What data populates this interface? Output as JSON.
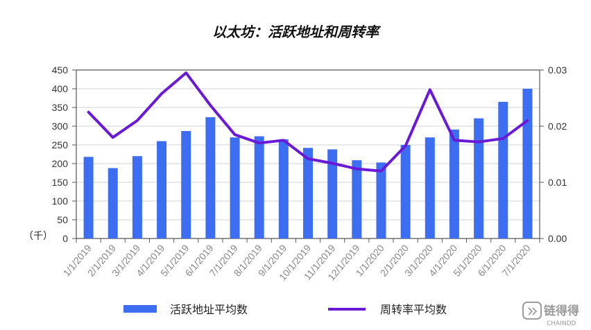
{
  "chart_data": {
    "type": "bar",
    "title": "以太坊：活跃地址和周转率",
    "categories": [
      "1/1/2019",
      "2/1/2019",
      "3/1/2019",
      "4/1/2019",
      "5/1/2019",
      "6/1/2019",
      "7/1/2019",
      "8/1/2019",
      "9/1/2019",
      "10/1/2019",
      "11/1/2019",
      "12/1/2019",
      "1/1/2020",
      "2/1/2020",
      "3/1/2020",
      "4/1/2020",
      "5/1/2020",
      "6/1/2020",
      "7/1/2020"
    ],
    "y_left": {
      "unit_label": "（千）",
      "ylim": [
        0,
        450
      ],
      "ticks": [
        "0",
        "50",
        "100",
        "150",
        "200",
        "250",
        "300",
        "350",
        "400",
        "450"
      ]
    },
    "y_right": {
      "ylim": [
        0,
        0.03
      ],
      "ticks": [
        "0.00",
        "0.01",
        "0.02",
        "0.03"
      ]
    },
    "series": [
      {
        "name": "活跃地址平均数",
        "type": "bar",
        "axis": "left",
        "color": "#3d6ef2",
        "values": [
          218,
          188,
          220,
          260,
          287,
          324,
          270,
          273,
          265,
          242,
          238,
          209,
          203,
          250,
          270,
          291,
          321,
          365,
          400
        ]
      },
      {
        "name": "周转率平均数",
        "type": "line",
        "axis": "right",
        "color": "#6a1ad6",
        "values": [
          0.0225,
          0.018,
          0.021,
          0.0258,
          0.0295,
          0.0237,
          0.0185,
          0.017,
          0.0175,
          0.0142,
          0.0134,
          0.0124,
          0.012,
          0.0165,
          0.0265,
          0.0175,
          0.0172,
          0.0178,
          0.021
        ]
      }
    ],
    "legend_position": "bottom",
    "grid": true
  },
  "watermark": {
    "brand": "链得得",
    "sub": "CHAINDD",
    "icon": "chaindd-logo-icon"
  }
}
